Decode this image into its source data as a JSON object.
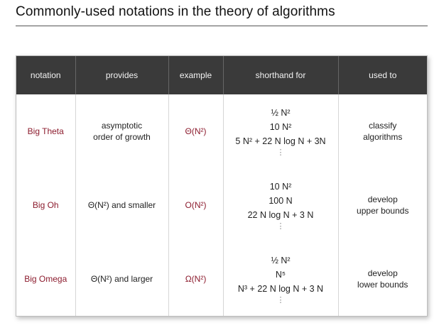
{
  "title": "Commonly-used notations in the theory of algorithms",
  "table": {
    "headers": [
      "notation",
      "provides",
      "example",
      "shorthand for",
      "used to"
    ],
    "rows": [
      {
        "notation": "Big Theta",
        "provides": [
          "asymptotic",
          "order of growth"
        ],
        "example": "Θ(N²)",
        "shorthand": [
          "½ N²",
          "10 N²",
          "5 N² + 22 N log N + 3N",
          "⋮"
        ],
        "used_to": [
          "classify",
          "algorithms"
        ]
      },
      {
        "notation": "Big Oh",
        "provides": [
          "Θ(N²) and smaller"
        ],
        "example": "O(N²)",
        "shorthand": [
          "10 N²",
          "100 N",
          "22 N log N + 3 N",
          "⋮"
        ],
        "used_to": [
          "develop",
          "upper bounds"
        ]
      },
      {
        "notation": "Big Omega",
        "provides": [
          "Θ(N²) and larger"
        ],
        "example": "Ω(N²)",
        "shorthand": [
          "½ N²",
          "N⁵",
          "N³ + 22 N log N + 3 N",
          "⋮"
        ],
        "used_to": [
          "develop",
          "lower bounds"
        ]
      }
    ]
  }
}
